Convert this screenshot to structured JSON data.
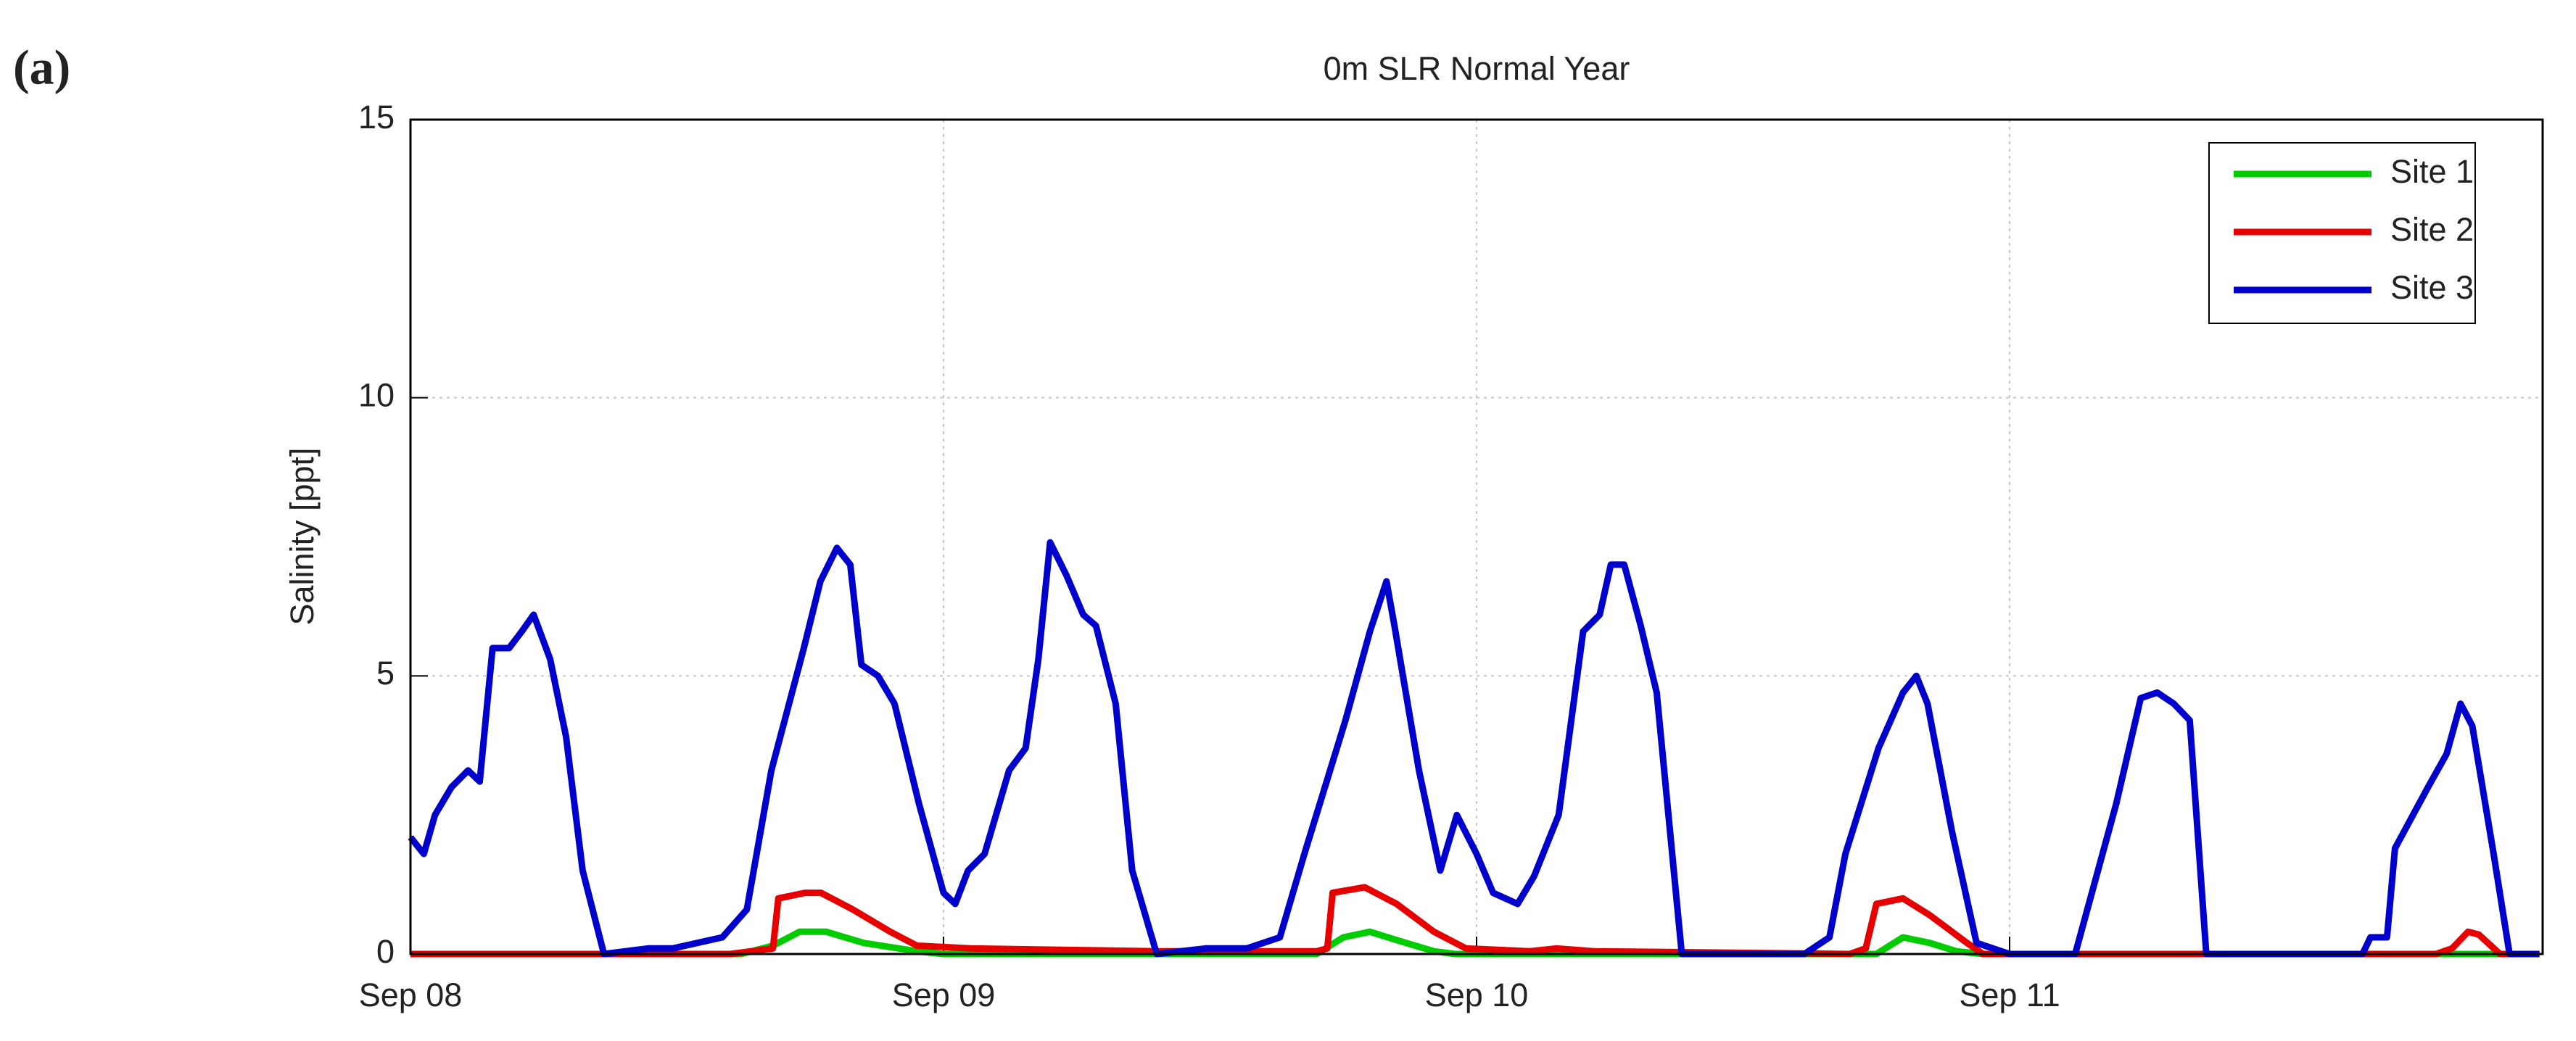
{
  "panel_label": "(a)",
  "chart_data": {
    "type": "line",
    "title": "0m SLR Normal Year",
    "y_label": "Salinity [ppt]",
    "xlim": [
      0,
      4
    ],
    "xticks": [
      {
        "value": 0,
        "label": "Sep 08"
      },
      {
        "value": 1,
        "label": "Sep 09"
      },
      {
        "value": 2,
        "label": "Sep 10"
      },
      {
        "value": 3,
        "label": "Sep 11"
      }
    ],
    "ylim": [
      0,
      15
    ],
    "yticks": [
      0,
      5,
      10,
      15
    ],
    "grid": true,
    "legend": "upper right",
    "series": [
      {
        "name": "Site 1",
        "color": "#00cc00",
        "x": [
          0,
          0.62,
          0.68,
          0.73,
          0.78,
          0.85,
          0.95,
          1.0,
          1.7,
          1.75,
          1.8,
          1.85,
          1.92,
          1.96,
          2.75,
          2.8,
          2.85,
          2.9,
          2.95,
          3.994
        ],
        "values": [
          0,
          0,
          0.15,
          0.4,
          0.4,
          0.2,
          0.05,
          0,
          0,
          0.3,
          0.4,
          0.25,
          0.05,
          0,
          0,
          0.3,
          0.2,
          0.05,
          0,
          0
        ]
      },
      {
        "name": "Site 2",
        "color": "#e60000",
        "x": [
          0,
          0.6,
          0.68,
          0.69,
          0.74,
          0.77,
          0.83,
          0.9,
          0.95,
          1.05,
          1.4,
          1.7,
          1.72,
          1.73,
          1.79,
          1.85,
          1.92,
          1.98,
          2.1,
          2.15,
          2.22,
          2.7,
          2.73,
          2.75,
          2.8,
          2.85,
          2.92,
          2.95,
          3.8,
          3.83,
          3.86,
          3.88,
          3.92,
          3.994
        ],
        "values": [
          0,
          0,
          0.1,
          1.0,
          1.1,
          1.1,
          0.8,
          0.4,
          0.15,
          0.1,
          0.05,
          0.05,
          0.1,
          1.1,
          1.2,
          0.9,
          0.4,
          0.1,
          0.05,
          0.1,
          0.05,
          0,
          0.1,
          0.9,
          1.0,
          0.7,
          0.2,
          0,
          0,
          0.1,
          0.4,
          0.35,
          0,
          0
        ]
      },
      {
        "name": "Site 3",
        "color": "#0000cc",
        "x": [
          0,
          0.025,
          0.046,
          0.077,
          0.108,
          0.13,
          0.154,
          0.185,
          0.209,
          0.231,
          0.262,
          0.292,
          0.323,
          0.363,
          0.446,
          0.492,
          0.585,
          0.631,
          0.677,
          0.738,
          0.769,
          0.8,
          0.825,
          0.846,
          0.877,
          0.908,
          0.954,
          1.0,
          1.022,
          1.046,
          1.077,
          1.123,
          1.154,
          1.178,
          1.2,
          1.231,
          1.262,
          1.286,
          1.323,
          1.354,
          1.4,
          1.492,
          1.569,
          1.631,
          1.677,
          1.754,
          1.8,
          1.831,
          1.846,
          1.892,
          1.932,
          1.963,
          2.0,
          2.031,
          2.077,
          2.108,
          2.154,
          2.2,
          2.231,
          2.252,
          2.277,
          2.308,
          2.338,
          2.385,
          2.615,
          2.662,
          2.692,
          2.754,
          2.8,
          2.825,
          2.846,
          2.892,
          2.938,
          3.0,
          3.123,
          3.2,
          3.246,
          3.277,
          3.308,
          3.338,
          3.369,
          3.662,
          3.677,
          3.708,
          3.723,
          3.785,
          3.82,
          3.846,
          3.868,
          3.908,
          3.938,
          3.994
        ],
        "values": [
          2.1,
          1.8,
          2.5,
          3.0,
          3.3,
          3.1,
          5.5,
          5.5,
          5.8,
          6.1,
          5.3,
          3.9,
          1.5,
          0,
          0.1,
          0.1,
          0.3,
          0.8,
          3.3,
          5.5,
          6.7,
          7.3,
          7.0,
          5.2,
          5.0,
          4.5,
          2.7,
          1.1,
          0.9,
          1.5,
          1.8,
          3.3,
          3.7,
          5.3,
          7.4,
          6.8,
          6.1,
          5.9,
          4.5,
          1.5,
          0,
          0.1,
          0.1,
          0.3,
          1.8,
          4.2,
          5.8,
          6.7,
          5.9,
          3.3,
          1.5,
          2.5,
          1.8,
          1.1,
          0.9,
          1.4,
          2.5,
          5.8,
          6.1,
          7.0,
          7.0,
          5.9,
          4.7,
          0,
          0,
          0.3,
          1.8,
          3.7,
          4.7,
          5.0,
          4.5,
          2.2,
          0.2,
          0,
          0,
          2.7,
          4.6,
          4.7,
          4.5,
          4.2,
          0,
          0,
          0.3,
          0.3,
          1.9,
          3.0,
          3.6,
          4.5,
          4.1,
          1.8,
          0,
          0
        ]
      }
    ]
  }
}
